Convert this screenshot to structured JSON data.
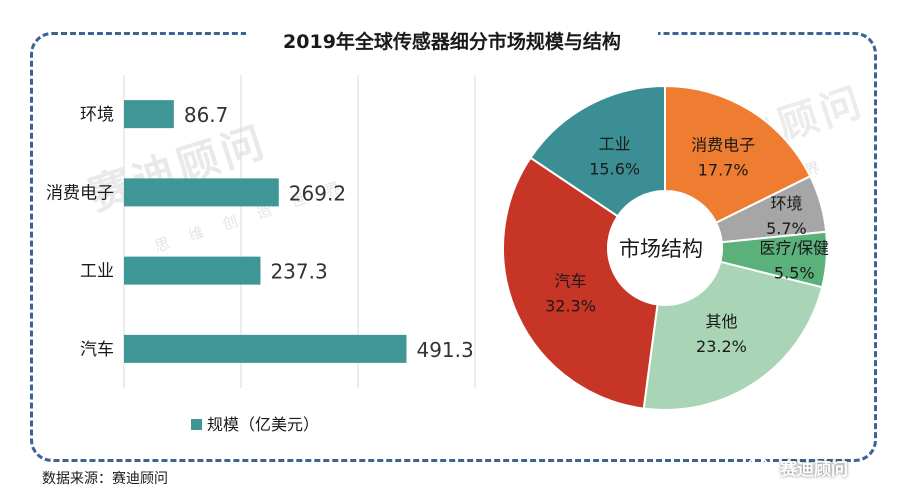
{
  "title": "2019年全球传感器细分市场规模与结构",
  "source": "数据来源：赛迪顾问",
  "brand": "赛迪顾问",
  "watermark": {
    "name": "赛迪顾问",
    "slogan": "思 维 创 造 世 界"
  },
  "chart_data": [
    {
      "type": "bar",
      "orientation": "horizontal",
      "categories": [
        "环境",
        "消费电子",
        "工业",
        "汽车"
      ],
      "values": [
        86.7,
        269.2,
        237.3,
        491.3
      ],
      "value_labels": [
        "86.7",
        "269.2",
        "237.3",
        "491.3"
      ],
      "legend": "规模（亿美元）",
      "xlim": [
        0,
        560
      ],
      "color": "#3f9696"
    },
    {
      "type": "pie",
      "variant": "donut",
      "center_label": "市场结构",
      "slices": [
        {
          "label": "工业",
          "value": 15.6,
          "display": "15.6%",
          "color": "#3b8f94"
        },
        {
          "label": "消费电子",
          "value": 17.7,
          "display": "17.7%",
          "color": "#ee7d31"
        },
        {
          "label": "环境",
          "value": 5.7,
          "display": "5.7%",
          "color": "#a6a6a6"
        },
        {
          "label": "医疗/保健",
          "value": 5.5,
          "display": "5.5%",
          "color": "#5ab17a"
        },
        {
          "label": "其他",
          "value": 23.2,
          "display": "23.2%",
          "color": "#a9d4b5"
        },
        {
          "label": "汽车",
          "value": 32.3,
          "display": "32.3%",
          "color": "#c63525"
        }
      ]
    }
  ]
}
